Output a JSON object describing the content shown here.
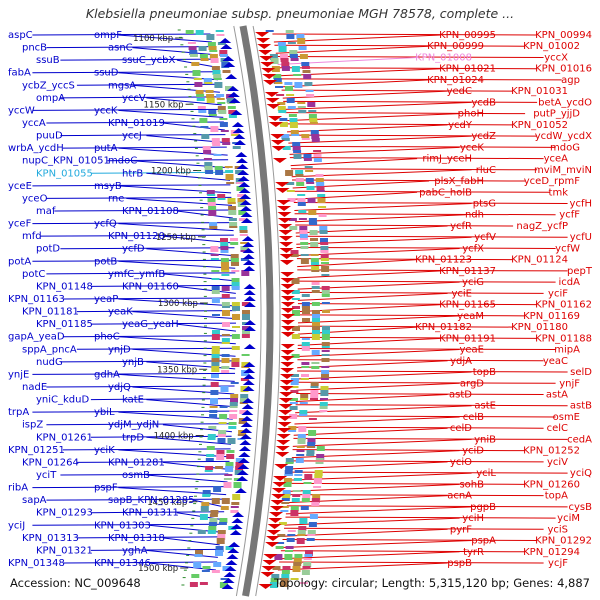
{
  "title": "Klebsiella pneumoniae subsp. pneumoniae MGH 78578, complete ...",
  "footer": {
    "accession": "Accession: NC_009648",
    "topology": "Topology: circular; Length: 5,315,120 bp; Genes: 4,887"
  },
  "colors": {
    "forward": "#0000cc",
    "reverse": "#dd0000",
    "highlight_fwd": "#22aadd",
    "highlight_rev": "#ee88dd"
  },
  "scale_labels": [
    "1100 kbp",
    "1150 kbp",
    "1200 kbp",
    "1250 kbp",
    "1300 kbp",
    "1350 kbp",
    "1400 kbp",
    "1450 kbp",
    "1500 kbp"
  ],
  "left_genes": [
    {
      "label": "aspC",
      "highlight": false
    },
    {
      "label": "ompF",
      "highlight": false
    },
    {
      "label": "pncB",
      "highlight": false
    },
    {
      "label": "asnC",
      "highlight": false
    },
    {
      "label": "ssuB",
      "highlight": false
    },
    {
      "label": "ssuC_ycbX",
      "highlight": false
    },
    {
      "label": "fabA",
      "highlight": false
    },
    {
      "label": "ssuD",
      "highlight": false
    },
    {
      "label": "ycbZ_yccS",
      "highlight": false
    },
    {
      "label": "mgsA",
      "highlight": false
    },
    {
      "label": "ompA",
      "highlight": false
    },
    {
      "label": "yccV",
      "highlight": false
    },
    {
      "label": "yccW",
      "highlight": false
    },
    {
      "label": "yccK",
      "highlight": false
    },
    {
      "label": "yccA",
      "highlight": false
    },
    {
      "label": "KPN_01019",
      "highlight": false
    },
    {
      "label": "puuD",
      "highlight": false
    },
    {
      "label": "yccJ",
      "highlight": false
    },
    {
      "label": "wrbA_ycdH",
      "highlight": false
    },
    {
      "label": "putA",
      "highlight": false
    },
    {
      "label": "nupC_KPN_01051",
      "highlight": false
    },
    {
      "label": "mdoC",
      "highlight": false
    },
    {
      "label": "KPN_01055",
      "highlight": true
    },
    {
      "label": "htrB",
      "highlight": false
    },
    {
      "label": "yceE",
      "highlight": false
    },
    {
      "label": "msyB",
      "highlight": false
    },
    {
      "label": "yceO",
      "highlight": false
    },
    {
      "label": "rne",
      "highlight": false
    },
    {
      "label": "maf",
      "highlight": false
    },
    {
      "label": "KPN_01108",
      "highlight": false
    },
    {
      "label": "yceF",
      "highlight": false
    },
    {
      "label": "ycfQ",
      "highlight": false
    },
    {
      "label": "mfd",
      "highlight": false
    },
    {
      "label": "KPN_01120",
      "highlight": false
    },
    {
      "label": "potD",
      "highlight": false
    },
    {
      "label": "ycfD",
      "highlight": false
    },
    {
      "label": "potA",
      "highlight": false
    },
    {
      "label": "potB",
      "highlight": false
    },
    {
      "label": "potC",
      "highlight": false
    },
    {
      "label": "ymfC_ymfB",
      "highlight": false
    },
    {
      "label": "KPN_01148",
      "highlight": false
    },
    {
      "label": "KPN_01160",
      "highlight": false
    },
    {
      "label": "KPN_01163",
      "highlight": false
    },
    {
      "label": "yeaP",
      "highlight": false
    },
    {
      "label": "KPN_01181",
      "highlight": false
    },
    {
      "label": "yeaK",
      "highlight": false
    },
    {
      "label": "KPN_01185",
      "highlight": false
    },
    {
      "label": "yeaG_yeaH",
      "highlight": false
    },
    {
      "label": "gapA_yeaD",
      "highlight": false
    },
    {
      "label": "phoC",
      "highlight": false
    },
    {
      "label": "sppA_pncA",
      "highlight": false
    },
    {
      "label": "ynjD",
      "highlight": false
    },
    {
      "label": "nudG",
      "highlight": false
    },
    {
      "label": "ynjB",
      "highlight": false
    },
    {
      "label": "ynjE",
      "highlight": false
    },
    {
      "label": "gdhA",
      "highlight": false
    },
    {
      "label": "nadE",
      "highlight": false
    },
    {
      "label": "ydjQ",
      "highlight": false
    },
    {
      "label": "yniC_kduD",
      "highlight": false
    },
    {
      "label": "katE",
      "highlight": false
    },
    {
      "label": "trpA",
      "highlight": false
    },
    {
      "label": "ybiL",
      "highlight": false
    },
    {
      "label": "ispZ",
      "highlight": false
    },
    {
      "label": "ydjM_ydjN",
      "highlight": false
    },
    {
      "label": "KPN_01261",
      "highlight": false
    },
    {
      "label": "trpD",
      "highlight": false
    },
    {
      "label": "KPN_01251",
      "highlight": false
    },
    {
      "label": "yciK",
      "highlight": false
    },
    {
      "label": "KPN_01264",
      "highlight": false
    },
    {
      "label": "KPN_01281",
      "highlight": false
    },
    {
      "label": "yciT",
      "highlight": false
    },
    {
      "label": "osmB",
      "highlight": false
    },
    {
      "label": "ribA",
      "highlight": false
    },
    {
      "label": "pspF",
      "highlight": false
    },
    {
      "label": "sapA",
      "highlight": false
    },
    {
      "label": "sapB_KPN_01285",
      "highlight": false
    },
    {
      "label": "KPN_01293",
      "highlight": false
    },
    {
      "label": "KPN_01311",
      "highlight": false
    },
    {
      "label": "yciJ",
      "highlight": false
    },
    {
      "label": "KPN_01303",
      "highlight": false
    },
    {
      "label": "KPN_01313",
      "highlight": false
    },
    {
      "label": "KPN_01318",
      "highlight": false
    },
    {
      "label": "KPN_01321",
      "highlight": false
    },
    {
      "label": "yghA",
      "highlight": false
    },
    {
      "label": "KPN_01348",
      "highlight": false
    },
    {
      "label": "KPN_01346",
      "highlight": false
    }
  ],
  "right_genes": [
    {
      "label": "KPN_00994",
      "highlight": false
    },
    {
      "label": "KPN_00995",
      "highlight": false
    },
    {
      "label": "KPN_01002",
      "highlight": false
    },
    {
      "label": "KPN_00999",
      "highlight": false
    },
    {
      "label": "yccX",
      "highlight": false
    },
    {
      "label": "KPN_01008",
      "highlight": true
    },
    {
      "label": "KPN_01016",
      "highlight": false
    },
    {
      "label": "KPN_01021",
      "highlight": false
    },
    {
      "label": "agp",
      "highlight": false
    },
    {
      "label": "KPN_01024",
      "highlight": false
    },
    {
      "label": "KPN_01031",
      "highlight": false
    },
    {
      "label": "yedC",
      "highlight": false
    },
    {
      "label": "betA_ycdO",
      "highlight": false
    },
    {
      "label": "ycdB",
      "highlight": false
    },
    {
      "label": "putP_yjjD",
      "highlight": false
    },
    {
      "label": "phoH",
      "highlight": false
    },
    {
      "label": "KPN_01052",
      "highlight": false
    },
    {
      "label": "ycdY",
      "highlight": false
    },
    {
      "label": "ycdW_ycdX",
      "highlight": false
    },
    {
      "label": "ycdZ",
      "highlight": false
    },
    {
      "label": "mdoG",
      "highlight": false
    },
    {
      "label": "yceK",
      "highlight": false
    },
    {
      "label": "yceA",
      "highlight": false
    },
    {
      "label": "rimJ_yceH",
      "highlight": false
    },
    {
      "label": "mviM_mviN",
      "highlight": false
    },
    {
      "label": "rluC",
      "highlight": false
    },
    {
      "label": "yceD_rpmF",
      "highlight": false
    },
    {
      "label": "plsX_fabH",
      "highlight": false
    },
    {
      "label": "tmk",
      "highlight": false
    },
    {
      "label": "pabC_holB",
      "highlight": false
    },
    {
      "label": "ycfH",
      "highlight": false
    },
    {
      "label": "ptsG",
      "highlight": false
    },
    {
      "label": "ycfF",
      "highlight": false
    },
    {
      "label": "ndh",
      "highlight": false
    },
    {
      "label": "nagZ_ycfP",
      "highlight": false
    },
    {
      "label": "ycfR",
      "highlight": false
    },
    {
      "label": "ycfU",
      "highlight": false
    },
    {
      "label": "ycfV",
      "highlight": false
    },
    {
      "label": "ycfW",
      "highlight": false
    },
    {
      "label": "ycfX",
      "highlight": false
    },
    {
      "label": "KPN_01124",
      "highlight": false
    },
    {
      "label": "KPN_01123",
      "highlight": false
    },
    {
      "label": "pepT",
      "highlight": false
    },
    {
      "label": "KPN_01137",
      "highlight": false
    },
    {
      "label": "icdA",
      "highlight": false
    },
    {
      "label": "yciG",
      "highlight": false
    },
    {
      "label": "yciF",
      "highlight": false
    },
    {
      "label": "yciE",
      "highlight": false
    },
    {
      "label": "KPN_01162",
      "highlight": false
    },
    {
      "label": "KPN_01165",
      "highlight": false
    },
    {
      "label": "KPN_01169",
      "highlight": false
    },
    {
      "label": "yeaM",
      "highlight": false
    },
    {
      "label": "KPN_01180",
      "highlight": false
    },
    {
      "label": "KPN_01182",
      "highlight": false
    },
    {
      "label": "KPN_01188",
      "highlight": false
    },
    {
      "label": "KPN_01191",
      "highlight": false
    },
    {
      "label": "mipA",
      "highlight": false
    },
    {
      "label": "yeaE",
      "highlight": false
    },
    {
      "label": "yeaC",
      "highlight": false
    },
    {
      "label": "ydjA",
      "highlight": false
    },
    {
      "label": "selD",
      "highlight": false
    },
    {
      "label": "topB",
      "highlight": false
    },
    {
      "label": "ynjF",
      "highlight": false
    },
    {
      "label": "argD",
      "highlight": false
    },
    {
      "label": "astA",
      "highlight": false
    },
    {
      "label": "astD",
      "highlight": false
    },
    {
      "label": "astB",
      "highlight": false
    },
    {
      "label": "astE",
      "highlight": false
    },
    {
      "label": "osmE",
      "highlight": false
    },
    {
      "label": "celB",
      "highlight": false
    },
    {
      "label": "celC",
      "highlight": false
    },
    {
      "label": "celD",
      "highlight": false
    },
    {
      "label": "cedA",
      "highlight": false
    },
    {
      "label": "yniB",
      "highlight": false
    },
    {
      "label": "KPN_01252",
      "highlight": false
    },
    {
      "label": "yciD",
      "highlight": false
    },
    {
      "label": "yciV",
      "highlight": false
    },
    {
      "label": "yciO",
      "highlight": false
    },
    {
      "label": "yciQ",
      "highlight": false
    },
    {
      "label": "yciL",
      "highlight": false
    },
    {
      "label": "KPN_01260",
      "highlight": false
    },
    {
      "label": "sohB",
      "highlight": false
    },
    {
      "label": "topA",
      "highlight": false
    },
    {
      "label": "acnA",
      "highlight": false
    },
    {
      "label": "cysB",
      "highlight": false
    },
    {
      "label": "pgpB",
      "highlight": false
    },
    {
      "label": "yciM",
      "highlight": false
    },
    {
      "label": "yciH",
      "highlight": false
    },
    {
      "label": "yciS",
      "highlight": false
    },
    {
      "label": "pyrF",
      "highlight": false
    },
    {
      "label": "KPN_01292",
      "highlight": false
    },
    {
      "label": "pspA",
      "highlight": false
    },
    {
      "label": "KPN_01294",
      "highlight": false
    },
    {
      "label": "tyrR",
      "highlight": false
    },
    {
      "label": "ycjF",
      "highlight": false
    },
    {
      "label": "pspB",
      "highlight": false
    }
  ]
}
